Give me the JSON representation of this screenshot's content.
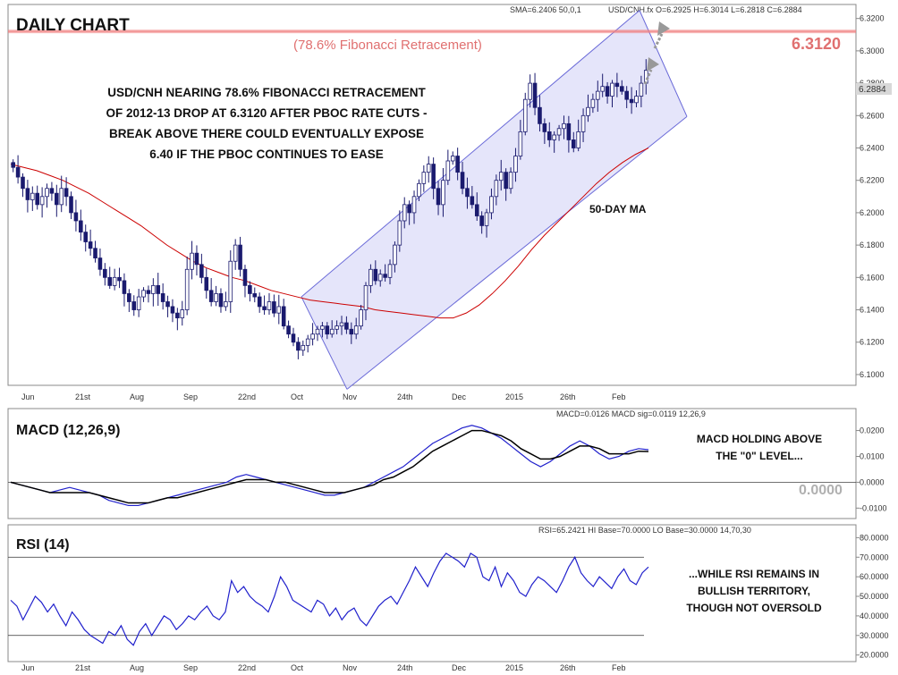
{
  "header": {
    "sma_text": "SMA=6.2406  50,0,1",
    "quote_text": "USD/CNH.fx O=6.2925 H=6.3014 L=6.2818 C=6.2884"
  },
  "main_panel": {
    "title": "DAILY CHART",
    "annotation_lines": [
      "USD/CNH NEARING 78.6% FIBONACCI RETRACEMENT",
      "OF 2012-13 DROP AT 6.3120 AFTER PBOC RATE CUTS -",
      "BREAK ABOVE THERE COULD EVENTUALLY EXPOSE",
      "6.40 IF THE PBOC CONTINUES TO EASE"
    ],
    "fib_label": "(78.6% Fibonacci Retracement)",
    "fib_value": "6.3120",
    "last_price": "6.2884",
    "ma_label": "50-DAY MA",
    "y_ticks": [
      "6.3200",
      "6.3000",
      "6.2800",
      "6.2600",
      "6.2400",
      "6.2200",
      "6.2000",
      "6.1800",
      "6.1600",
      "6.1400",
      "6.1200",
      "6.1000"
    ]
  },
  "macd_panel": {
    "title": "MACD (12,26,9)",
    "header_text": "MACD=0.0126 MACD sig=0.0119  12,26,9",
    "annotation_lines": [
      "MACD HOLDING ABOVE",
      "THE \"0\" LEVEL..."
    ],
    "zero_label": "0.0000",
    "y_ticks": [
      "0.0200",
      "0.0100",
      "0.0000",
      "-0.0100"
    ]
  },
  "rsi_panel": {
    "title": "RSI (14)",
    "header_text": "RSI=65.2421  HI Base=70.0000  LO Base=30.0000   14,70,30",
    "annotation_lines": [
      "...WHILE RSI REMAINS IN",
      "BULLISH TERRITORY,",
      "THOUGH NOT OVERSOLD"
    ],
    "y_ticks": [
      "80.0000",
      "70.0000",
      "60.0000",
      "50.0000",
      "40.0000",
      "30.0000",
      "20.0000"
    ]
  },
  "x_labels": [
    "Jun",
    "21st",
    "Aug",
    "Sep",
    "22nd",
    "Oct",
    "Nov",
    "24th",
    "Dec",
    "2015",
    "26th",
    "Feb"
  ],
  "colors": {
    "candle": "#1a1a6e",
    "ma": "#cc0000",
    "channel_fill": "#dcdcf8",
    "channel_line": "#6a6ad8",
    "fib_line": "#f08080",
    "fib_text": "#e07070",
    "macd": "#2020cc",
    "macd_signal": "#000000",
    "rsi": "#2020cc",
    "ma_label": "#cc0000"
  },
  "chart_data": [
    {
      "type": "candlestick",
      "series_name": "USD/CNH.fx",
      "x_range": [
        "2014-06",
        "2015-02"
      ],
      "ylim": [
        6.095,
        6.327
      ],
      "fib_level": 6.312,
      "last_close": 6.2884,
      "ohlc_last": {
        "open": 6.2925,
        "high": 6.3014,
        "low": 6.2818,
        "close": 6.2884
      },
      "close_path": [
        6.228,
        6.222,
        6.215,
        6.208,
        6.212,
        6.205,
        6.21,
        6.215,
        6.212,
        6.205,
        6.215,
        6.21,
        6.2,
        6.195,
        6.188,
        6.182,
        6.178,
        6.172,
        6.165,
        6.16,
        6.155,
        6.16,
        6.158,
        6.15,
        6.145,
        6.14,
        6.148,
        6.152,
        6.15,
        6.155,
        6.15,
        6.145,
        6.142,
        6.138,
        6.135,
        6.14,
        6.165,
        6.175,
        6.168,
        6.16,
        6.152,
        6.145,
        6.15,
        6.142,
        6.145,
        6.17,
        6.18,
        6.165,
        6.155,
        6.15,
        6.148,
        6.142,
        6.14,
        6.145,
        6.138,
        6.142,
        6.13,
        6.125,
        6.12,
        6.115,
        6.118,
        6.122,
        6.125,
        6.128,
        6.13,
        6.125,
        6.128,
        6.13,
        6.132,
        6.128,
        6.125,
        6.13,
        6.14,
        6.155,
        6.165,
        6.158,
        6.162,
        6.16,
        6.168,
        6.18,
        6.195,
        6.205,
        6.2,
        6.21,
        6.218,
        6.225,
        6.23,
        6.215,
        6.205,
        6.22,
        6.232,
        6.235,
        6.225,
        6.215,
        6.21,
        6.205,
        6.198,
        6.192,
        6.2,
        6.21,
        6.22,
        6.225,
        6.215,
        6.225,
        6.235,
        6.25,
        6.27,
        6.28,
        6.265,
        6.255,
        6.25,
        6.245,
        6.248,
        6.252,
        6.255,
        6.245,
        6.24,
        6.25,
        6.26,
        6.265,
        6.27,
        6.275,
        6.278,
        6.272,
        6.28,
        6.278,
        6.275,
        6.27,
        6.268,
        6.272,
        6.28,
        6.288
      ],
      "ma50_path": [
        6.23,
        6.228,
        6.226,
        6.223,
        6.22,
        6.216,
        6.212,
        6.207,
        6.202,
        6.197,
        6.192,
        6.186,
        6.18,
        6.175,
        6.17,
        6.166,
        6.163,
        6.16,
        6.158,
        6.155,
        6.152,
        6.15,
        6.148,
        6.146,
        6.145,
        6.144,
        6.143,
        6.142,
        6.14,
        6.139,
        6.138,
        6.137,
        6.136,
        6.135,
        6.135,
        6.138,
        6.143,
        6.15,
        6.158,
        6.167,
        6.177,
        6.186,
        6.194,
        6.202,
        6.21,
        6.218,
        6.225,
        6.231,
        6.236,
        6.24
      ],
      "channel": {
        "lower": [
          [
            6.113,
            6.255
          ],
          [
            6.105,
            6.265
          ]
        ],
        "upper": [
          [
            6.148,
            6.325
          ],
          [
            6.14,
            6.33
          ]
        ]
      }
    },
    {
      "type": "line",
      "title": "MACD (12,26,9)",
      "ylim": [
        -0.013,
        0.024
      ],
      "series": [
        {
          "name": "MACD",
          "values": [
            0.0,
            -0.001,
            -0.002,
            -0.003,
            -0.004,
            -0.003,
            -0.002,
            -0.003,
            -0.004,
            -0.005,
            -0.007,
            -0.008,
            -0.009,
            -0.009,
            -0.008,
            -0.007,
            -0.006,
            -0.005,
            -0.004,
            -0.003,
            -0.002,
            -0.001,
            0.0,
            0.002,
            0.003,
            0.002,
            0.001,
            0.0,
            -0.001,
            -0.002,
            -0.003,
            -0.004,
            -0.005,
            -0.005,
            -0.004,
            -0.003,
            -0.002,
            0.0,
            0.002,
            0.004,
            0.006,
            0.009,
            0.012,
            0.015,
            0.017,
            0.019,
            0.021,
            0.022,
            0.021,
            0.019,
            0.017,
            0.014,
            0.011,
            0.008,
            0.006,
            0.008,
            0.011,
            0.014,
            0.016,
            0.014,
            0.011,
            0.009,
            0.01,
            0.012,
            0.013,
            0.0126
          ]
        },
        {
          "name": "MACD sig",
          "values": [
            0.0,
            -0.001,
            -0.002,
            -0.003,
            -0.004,
            -0.004,
            -0.004,
            -0.004,
            -0.004,
            -0.005,
            -0.006,
            -0.007,
            -0.008,
            -0.008,
            -0.008,
            -0.007,
            -0.006,
            -0.006,
            -0.005,
            -0.004,
            -0.003,
            -0.002,
            -0.001,
            0.0,
            0.001,
            0.001,
            0.001,
            0.0,
            0.0,
            -0.001,
            -0.002,
            -0.003,
            -0.004,
            -0.004,
            -0.004,
            -0.003,
            -0.002,
            -0.001,
            0.001,
            0.002,
            0.004,
            0.006,
            0.009,
            0.012,
            0.014,
            0.016,
            0.018,
            0.02,
            0.02,
            0.019,
            0.018,
            0.016,
            0.013,
            0.011,
            0.009,
            0.009,
            0.01,
            0.012,
            0.014,
            0.014,
            0.013,
            0.011,
            0.011,
            0.011,
            0.012,
            0.0119
          ]
        }
      ]
    },
    {
      "type": "line",
      "title": "RSI (14)",
      "ylim": [
        18,
        82
      ],
      "hi_base": 70,
      "lo_base": 30,
      "series": [
        {
          "name": "RSI",
          "values": [
            48,
            45,
            38,
            44,
            50,
            47,
            42,
            46,
            40,
            35,
            42,
            38,
            33,
            30,
            28,
            26,
            32,
            30,
            35,
            28,
            25,
            32,
            36,
            30,
            35,
            40,
            38,
            33,
            36,
            40,
            38,
            42,
            45,
            40,
            38,
            42,
            58,
            52,
            55,
            50,
            47,
            45,
            42,
            50,
            60,
            55,
            48,
            46,
            44,
            42,
            48,
            46,
            40,
            44,
            38,
            42,
            44,
            38,
            35,
            40,
            45,
            48,
            50,
            46,
            52,
            58,
            65,
            60,
            55,
            62,
            68,
            72,
            70,
            68,
            65,
            72,
            70,
            60,
            58,
            65,
            55,
            62,
            58,
            52,
            50,
            56,
            60,
            58,
            55,
            52,
            58,
            65,
            70,
            62,
            58,
            55,
            60,
            57,
            54,
            60,
            64,
            58,
            56,
            62,
            65
          ]
        }
      ]
    }
  ]
}
